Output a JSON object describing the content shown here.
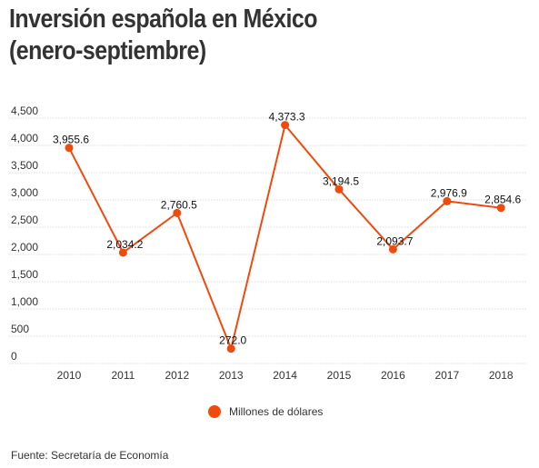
{
  "title": {
    "line1": "Inversión española en México",
    "line2": "(enero-septiembre)"
  },
  "source": "Fuente: Secretaría de Economía",
  "chart_data": {
    "type": "line",
    "categories": [
      "2010",
      "2011",
      "2012",
      "2013",
      "2014",
      "2015",
      "2016",
      "2017",
      "2018"
    ],
    "series": [
      {
        "name": "Millones de dólares",
        "values": [
          3955.6,
          2034.2,
          2760.5,
          272.0,
          4373.3,
          3194.5,
          2093.7,
          2976.9,
          2854.6
        ],
        "labels": [
          "3,955.6",
          "2,034.2",
          "2,760.5",
          "272.0",
          "4,373.3",
          "3,194.5",
          "2,093.7",
          "2,976.9",
          "2,854.6"
        ],
        "color": "#f04a0c"
      }
    ],
    "yticks": [
      {
        "value": 0,
        "label": "0"
      },
      {
        "value": 500,
        "label": "500"
      },
      {
        "value": 1000,
        "label": "1,000"
      },
      {
        "value": 1500,
        "label": "1,500"
      },
      {
        "value": 2000,
        "label": "2,000"
      },
      {
        "value": 2500,
        "label": "2,500"
      },
      {
        "value": 3000,
        "label": "3,000"
      },
      {
        "value": 3500,
        "label": "3,500"
      },
      {
        "value": 4000,
        "label": "4,000"
      },
      {
        "value": 4500,
        "label": "4,500"
      }
    ],
    "ylim": [
      0,
      4500
    ],
    "grid": true,
    "legend_position": "bottom-center",
    "grid_color": "#dddddd"
  }
}
